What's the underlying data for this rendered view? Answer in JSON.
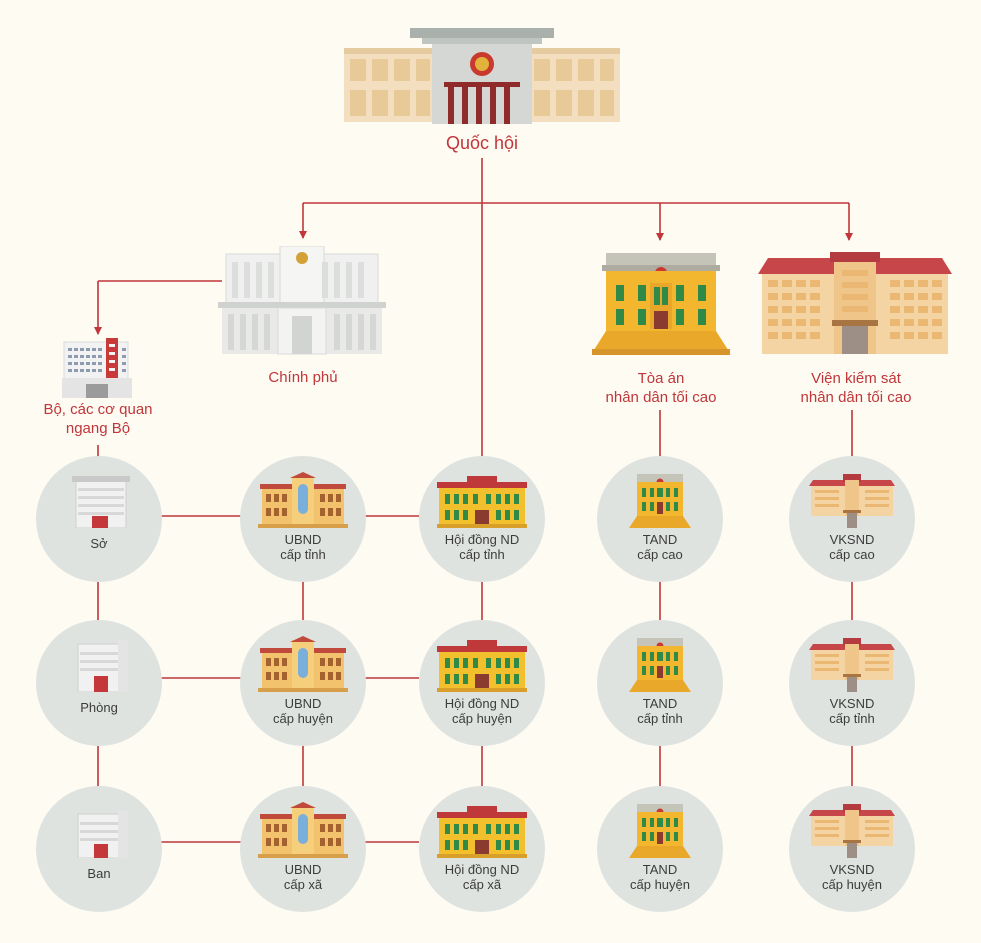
{
  "top": {
    "label": "Quốc hội"
  },
  "branches": {
    "chinh_phu": "Chính phủ",
    "bo": [
      "Bộ, các cơ quan",
      "ngang Bộ"
    ],
    "toa_an": [
      "Tòa án",
      "nhân dân tối cao"
    ],
    "vien_ks": [
      "Viện kiểm sát",
      "nhân dân tối cao"
    ]
  },
  "nodes": {
    "so": "Sở",
    "phong": "Phòng",
    "ban": "Ban",
    "ubnd_tinh": [
      "UBND",
      "cấp tỉnh"
    ],
    "ubnd_huyen": [
      "UBND",
      "cấp huyện"
    ],
    "ubnd_xa": [
      "UBND",
      "cấp xã"
    ],
    "hdnd_tinh": [
      "Hội đồng ND",
      "cấp tỉnh"
    ],
    "hdnd_huyen": [
      "Hội đồng ND",
      "cấp huyện"
    ],
    "hdnd_xa": [
      "Hội đồng ND",
      "cấp xã"
    ],
    "tand_cao": [
      "TAND",
      "cấp cao"
    ],
    "tand_tinh": [
      "TAND",
      "cấp tỉnh"
    ],
    "tand_huyen": [
      "TAND",
      "cấp huyện"
    ],
    "vksnd_cao": [
      "VKSND",
      "cấp cao"
    ],
    "vksnd_tinh": [
      "VKSND",
      "cấp tỉnh"
    ],
    "vksnd_huyen": [
      "VKSND",
      "cấp huyện"
    ]
  },
  "colors": {
    "line": "#c0363a",
    "circle": "#dfe3e0",
    "background": "#fdfbf2",
    "label_red": "#c0363a"
  }
}
